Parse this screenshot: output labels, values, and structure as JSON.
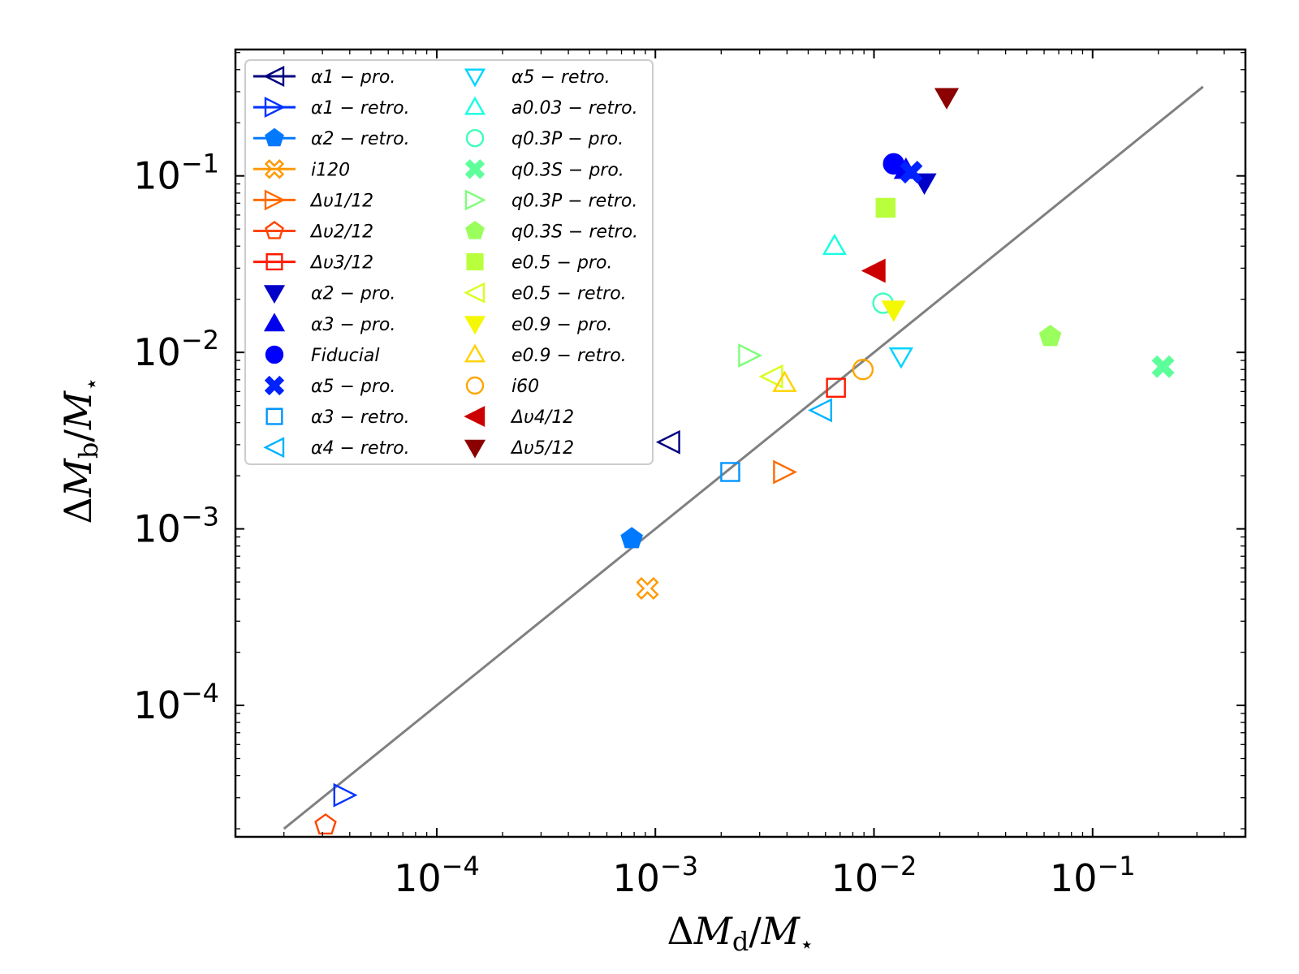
{
  "chart_data": {
    "type": "scatter",
    "title": "",
    "xlabel": "ΔM_d/M_⋆",
    "ylabel": "ΔM_b/M_⋆",
    "xscale": "log",
    "yscale": "log",
    "xlim": [
      1.2e-05,
      0.5
    ],
    "ylim": [
      1.8e-05,
      0.52
    ],
    "xticks": [
      {
        "value": 0.0001,
        "base": "10",
        "exp": "−4"
      },
      {
        "value": 0.001,
        "base": "10",
        "exp": "−3"
      },
      {
        "value": 0.01,
        "base": "10",
        "exp": "−2"
      },
      {
        "value": 0.1,
        "base": "10",
        "exp": "−1"
      }
    ],
    "yticks": [
      {
        "value": 0.0001,
        "base": "10",
        "exp": "−4"
      },
      {
        "value": 0.001,
        "base": "10",
        "exp": "−3"
      },
      {
        "value": 0.01,
        "base": "10",
        "exp": "−2"
      },
      {
        "value": 0.1,
        "base": "10",
        "exp": "−1"
      }
    ],
    "grid": false,
    "legend_position": "upper-left",
    "reference_line": {
      "x": [
        2e-05,
        0.32
      ],
      "y": [
        2e-05,
        0.32
      ],
      "color": "#808080"
    },
    "series": [
      {
        "name": "α1 − pro.",
        "marker": "tri-left",
        "filled": false,
        "color": "#00007f",
        "line": true,
        "x": 0.00115,
        "y": 0.0031
      },
      {
        "name": "α1 − retro.",
        "marker": "tri-right",
        "filled": false,
        "color": "#0033ff",
        "line": true,
        "x": 3.8e-05,
        "y": 3.1e-05
      },
      {
        "name": "α2 − retro.",
        "marker": "pentagon",
        "filled": true,
        "color": "#0079ff",
        "line": true,
        "x": 0.00078,
        "y": 0.00088
      },
      {
        "name": "i120",
        "marker": "x",
        "filled": false,
        "color": "#ff9900",
        "line": true,
        "x": 0.00092,
        "y": 0.00046
      },
      {
        "name": "Δυ1/12",
        "marker": "tri-right",
        "filled": false,
        "color": "#ff6a00",
        "line": true,
        "x": 0.0039,
        "y": 0.0021
      },
      {
        "name": "Δυ2/12",
        "marker": "pentagon",
        "filled": false,
        "color": "#ff4500",
        "line": true,
        "x": 3.1e-05,
        "y": 2.1e-05
      },
      {
        "name": "Δυ3/12",
        "marker": "square",
        "filled": false,
        "color": "#ff1a00",
        "line": true,
        "x": 0.0067,
        "y": 0.0063
      },
      {
        "name": "α2 − pro.",
        "marker": "tri-down",
        "filled": true,
        "color": "#0000c8",
        "line": false,
        "x": 0.017,
        "y": 0.092
      },
      {
        "name": "α3 − pro.",
        "marker": "tri-up",
        "filled": true,
        "color": "#0000ee",
        "line": false,
        "x": 0.014,
        "y": 0.108
      },
      {
        "name": "Fiducial",
        "marker": "circle",
        "filled": true,
        "color": "#0000ff",
        "line": false,
        "x": 0.0123,
        "y": 0.117
      },
      {
        "name": "α5 − pro.",
        "marker": "x",
        "filled": true,
        "color": "#0022ff",
        "line": false,
        "x": 0.0148,
        "y": 0.105
      },
      {
        "name": "α3 − retro.",
        "marker": "square",
        "filled": false,
        "color": "#0095ff",
        "line": false,
        "x": 0.0022,
        "y": 0.0021
      },
      {
        "name": "α4 − retro.",
        "marker": "tri-left",
        "filled": false,
        "color": "#00b3ff",
        "line": false,
        "x": 0.0057,
        "y": 0.0047
      },
      {
        "name": "α5 − retro.",
        "marker": "tri-down",
        "filled": false,
        "color": "#00d4ff",
        "line": false,
        "x": 0.0133,
        "y": 0.0095
      },
      {
        "name": "a0.03 − retro.",
        "marker": "tri-up",
        "filled": false,
        "color": "#16ffe1",
        "line": false,
        "x": 0.0066,
        "y": 0.04
      },
      {
        "name": "q0.3P − pro.",
        "marker": "circle",
        "filled": false,
        "color": "#3dffb9",
        "line": false,
        "x": 0.011,
        "y": 0.019
      },
      {
        "name": "q0.3S − pro.",
        "marker": "x",
        "filled": true,
        "color": "#5dff9a",
        "line": false,
        "x": 0.21,
        "y": 0.0083
      },
      {
        "name": "q0.3P − retro.",
        "marker": "tri-right",
        "filled": false,
        "color": "#7dff7a",
        "line": false,
        "x": 0.0027,
        "y": 0.0096
      },
      {
        "name": "q0.3S − retro.",
        "marker": "pentagon",
        "filled": true,
        "color": "#9aff5d",
        "line": false,
        "x": 0.064,
        "y": 0.0123
      },
      {
        "name": "e0.5 − pro.",
        "marker": "square",
        "filled": true,
        "color": "#b9ff3d",
        "line": false,
        "x": 0.0113,
        "y": 0.066
      },
      {
        "name": "e0.5 − retro.",
        "marker": "tri-left",
        "filled": false,
        "color": "#d7ff1f",
        "line": false,
        "x": 0.0034,
        "y": 0.0073
      },
      {
        "name": "e0.9 − pro.",
        "marker": "tri-down",
        "filled": true,
        "color": "#f4f802",
        "line": false,
        "x": 0.0123,
        "y": 0.0175
      },
      {
        "name": "e0.9 − retro.",
        "marker": "tri-up",
        "filled": false,
        "color": "#ffd200",
        "line": false,
        "x": 0.0039,
        "y": 0.0067
      },
      {
        "name": "i60",
        "marker": "circle",
        "filled": false,
        "color": "#ffa500",
        "line": false,
        "x": 0.0089,
        "y": 0.008
      },
      {
        "name": "Δυ4/12",
        "marker": "tri-left",
        "filled": true,
        "color": "#cc0000",
        "line": false,
        "x": 0.01,
        "y": 0.029
      },
      {
        "name": "Δυ5/12",
        "marker": "tri-down",
        "filled": true,
        "color": "#8b0000",
        "line": false,
        "x": 0.0215,
        "y": 0.28
      }
    ]
  }
}
